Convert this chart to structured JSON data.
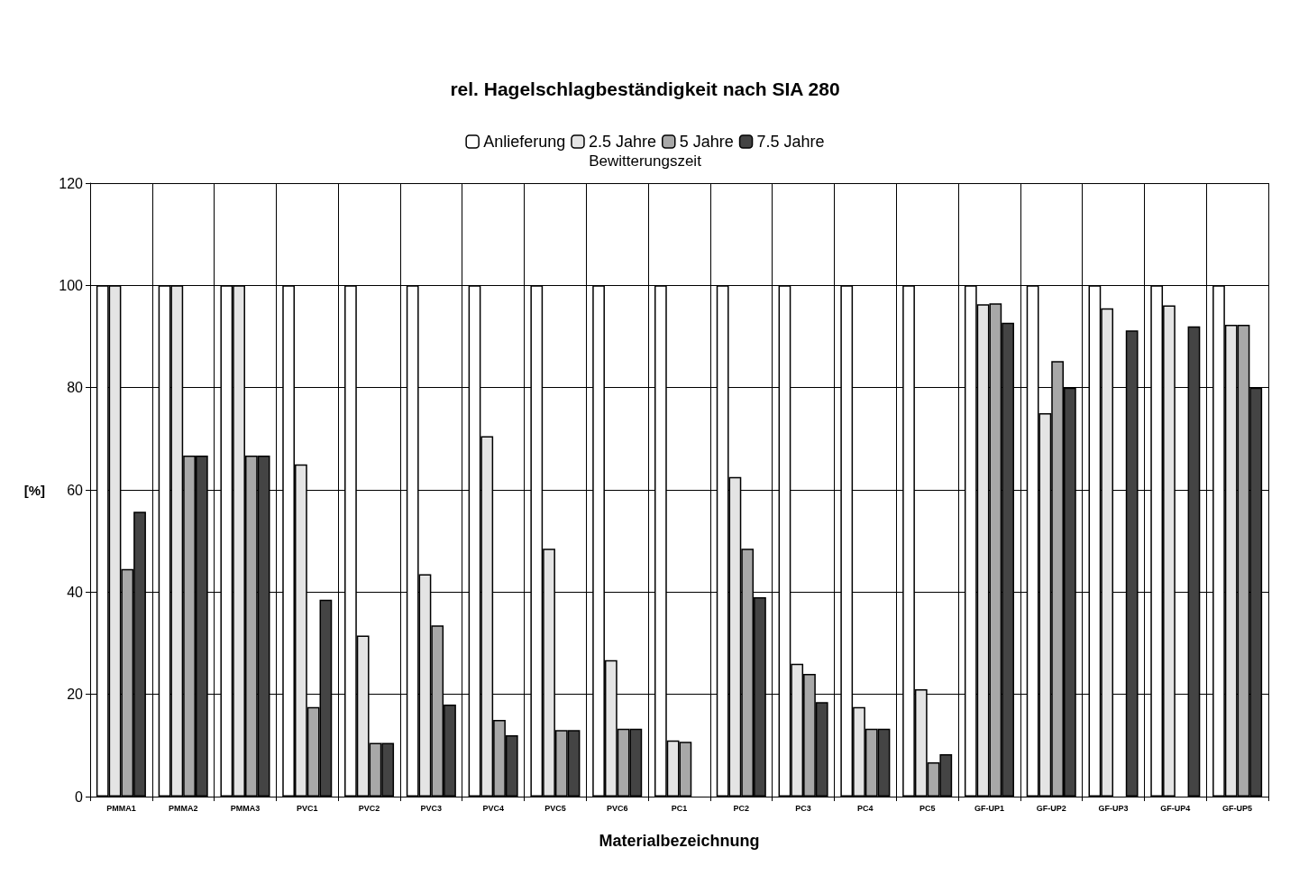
{
  "chart_data": {
    "type": "bar",
    "title": "rel. Hagelschlagbeständigkeit nach SIA 280",
    "xlabel": "Materialbezeichnung",
    "ylabel": "[%]",
    "legend_title": "Bewitterungszeit",
    "categories": [
      "PMMA1",
      "PMMA2",
      "PMMA3",
      "PVC1",
      "PVC2",
      "PVC3",
      "PVC4",
      "PVC5",
      "PVC6",
      "PC1",
      "PC2",
      "PC3",
      "PC4",
      "PC5",
      "GF-UP1",
      "GF-UP2",
      "GF-UP3",
      "GF-UP4",
      "GF-UP5"
    ],
    "series": [
      {
        "name": "Anlieferung",
        "color": "#ffffff",
        "values": [
          100,
          100,
          100,
          100,
          100,
          100,
          100,
          100,
          100,
          100,
          100,
          100,
          100,
          100,
          100,
          100,
          100,
          100,
          100
        ]
      },
      {
        "name": "2.5 Jahre",
        "color": "#e4e4e4",
        "values": [
          100,
          100,
          100,
          65,
          31.5,
          43.5,
          70.5,
          48.5,
          26.7,
          11,
          62.5,
          26,
          17.5,
          21,
          96.3,
          75,
          95.5,
          96.1,
          92.3
        ]
      },
      {
        "name": "5 Jahre",
        "color": "#a8a8a8",
        "values": [
          44.5,
          66.7,
          66.7,
          17.5,
          10.5,
          33.5,
          15,
          13,
          13.3,
          10.7,
          48.5,
          24,
          13.3,
          6.7,
          96.5,
          85.2,
          null,
          null,
          92.3
        ]
      },
      {
        "name": "7.5 Jahre",
        "color": "#444444",
        "values": [
          55.7,
          66.7,
          66.7,
          38.5,
          10.5,
          18,
          12,
          13,
          13.3,
          null,
          39,
          18.5,
          13.3,
          8.3,
          92.7,
          80,
          91.2,
          92,
          80
        ]
      }
    ],
    "ylim": [
      0,
      120
    ],
    "yticks": [
      0,
      20,
      40,
      60,
      80,
      100,
      120
    ],
    "grid": true,
    "legend": "top"
  }
}
